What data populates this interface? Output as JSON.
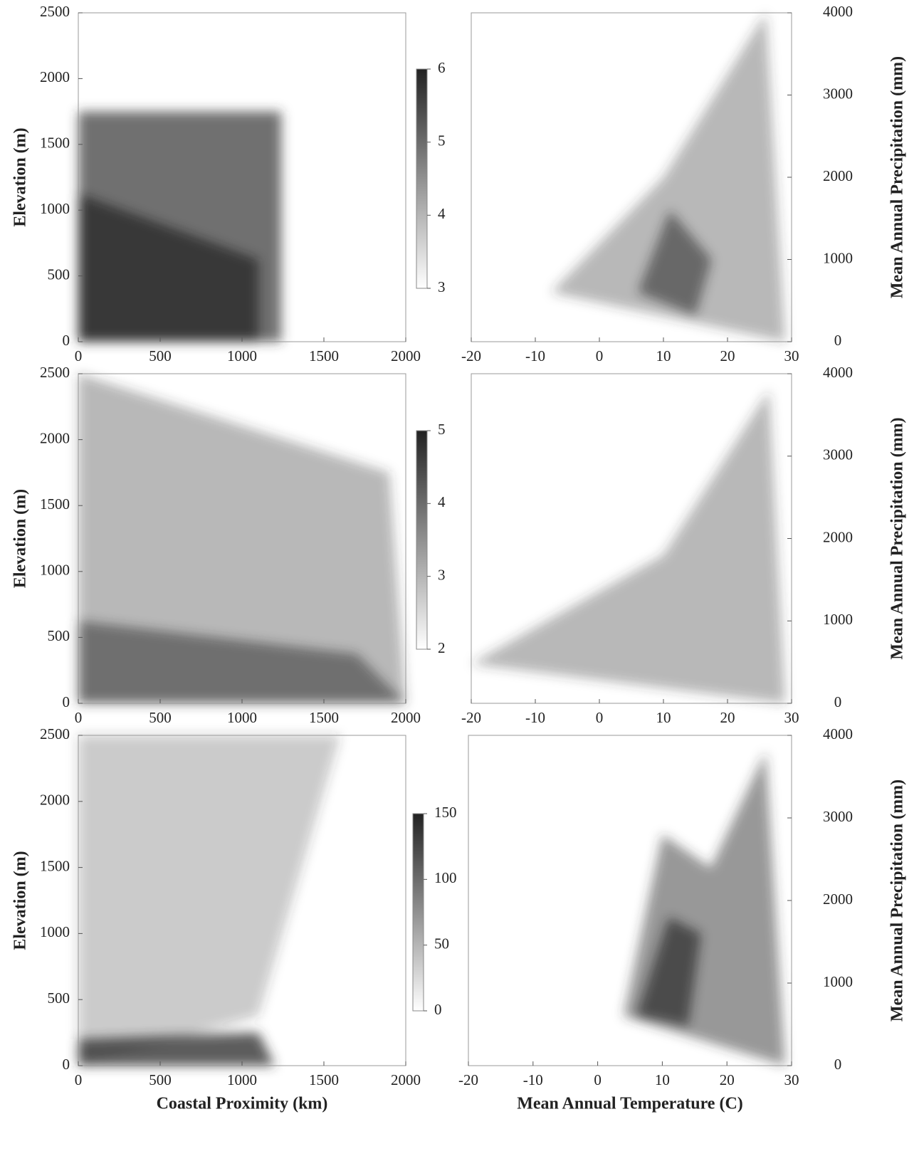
{
  "chart_data": [
    {
      "type": "heatmap",
      "ylabel": "Elevation (m)",
      "xlim": [
        0,
        2000
      ],
      "xticks": [
        0,
        500,
        1000,
        1500,
        2000
      ],
      "ylim": [
        0,
        2500
      ],
      "yticks": [
        0,
        500,
        1000,
        1500,
        2000,
        2500
      ],
      "colorbar": {
        "lim": [
          3,
          6
        ],
        "ticks": [
          3,
          4,
          5,
          6
        ]
      }
    },
    {
      "type": "heatmap",
      "ylabel": "Elevation (m)",
      "xlim": [
        0,
        2000
      ],
      "xticks": [
        0,
        500,
        1000,
        1500,
        2000
      ],
      "ylim": [
        0,
        2500
      ],
      "yticks": [
        0,
        500,
        1000,
        1500,
        2000,
        2500
      ],
      "colorbar": {
        "lim": [
          2,
          5
        ],
        "ticks": [
          2,
          3,
          4,
          5
        ]
      }
    },
    {
      "type": "heatmap",
      "ylabel": "Elevation (m)",
      "xlabel": "Coastal Proximity (km)",
      "xlim": [
        0,
        2000
      ],
      "xticks": [
        0,
        500,
        1000,
        1500,
        2000
      ],
      "ylim": [
        0,
        2500
      ],
      "yticks": [
        0,
        500,
        1000,
        1500,
        2000,
        2500
      ],
      "colorbar": {
        "lim": [
          0,
          150
        ],
        "ticks": [
          0,
          50,
          100,
          150
        ]
      }
    },
    {
      "type": "heatmap",
      "y2label": "Mean Annual Precipitation (mm)",
      "xlim": [
        -20,
        30
      ],
      "xticks": [
        -20,
        -10,
        0,
        10,
        20,
        30
      ],
      "y2lim": [
        0,
        4000
      ],
      "y2ticks": [
        0,
        1000,
        2000,
        3000,
        4000
      ]
    },
    {
      "type": "heatmap",
      "y2label": "Mean Annual Precipitation (mm)",
      "xlim": [
        -20,
        30
      ],
      "xticks": [
        -20,
        -10,
        0,
        10,
        20,
        30
      ],
      "y2lim": [
        0,
        4000
      ],
      "y2ticks": [
        0,
        1000,
        2000,
        3000,
        4000
      ]
    },
    {
      "type": "heatmap",
      "y2label": "Mean Annual Precipitation (mm)",
      "xlabel": "Mean Annual Temperature (C)",
      "xlim": [
        -20,
        30
      ],
      "xticks": [
        -20,
        -10,
        0,
        10,
        20,
        30
      ],
      "y2lim": [
        0,
        4000
      ],
      "y2ticks": [
        0,
        1000,
        2000,
        3000,
        4000
      ]
    }
  ]
}
